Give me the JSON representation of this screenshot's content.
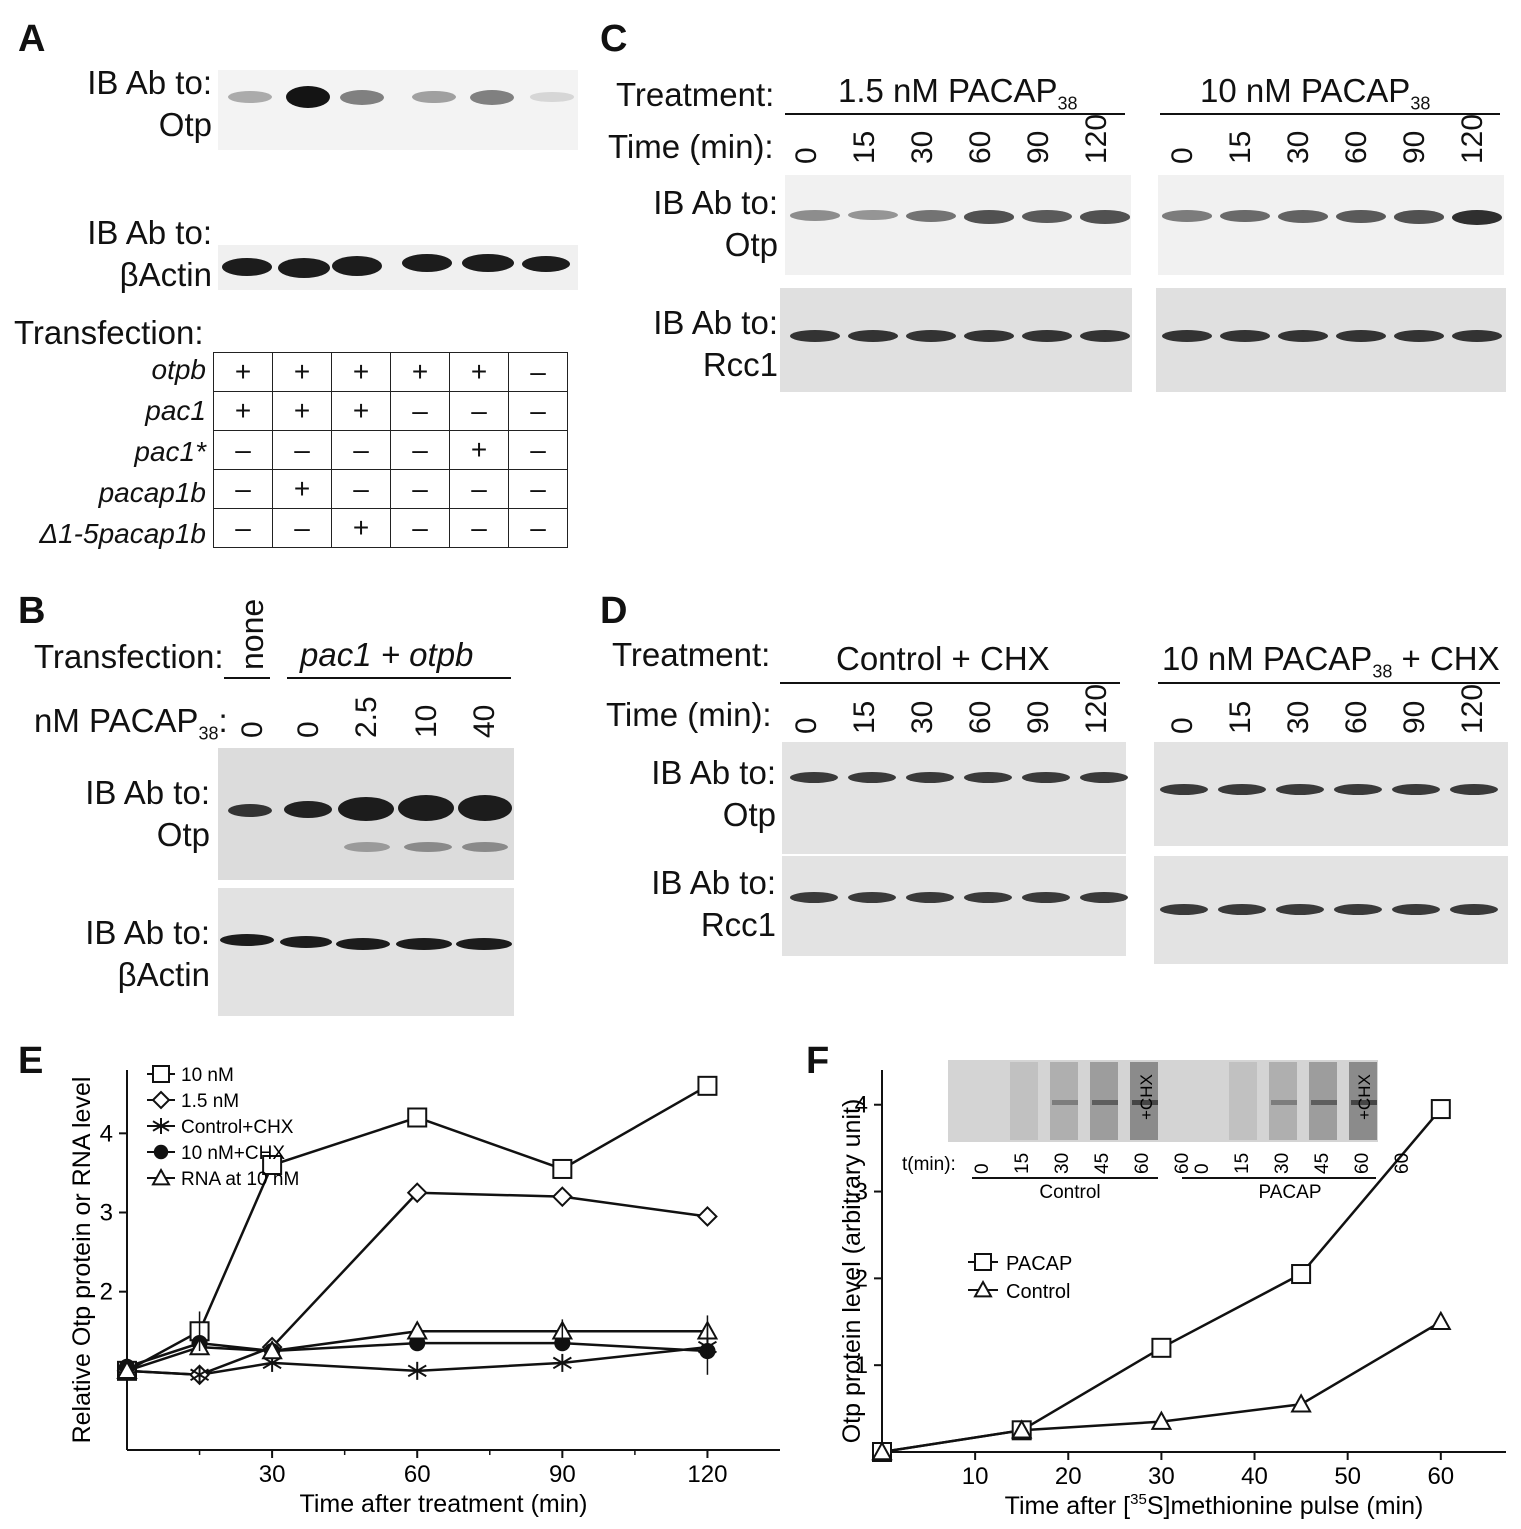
{
  "panels": {
    "A": "A",
    "B": "B",
    "C": "C",
    "D": "D",
    "E": "E",
    "F": "F"
  },
  "panelA": {
    "ib_otp": [
      "IB Ab to:",
      "Otp"
    ],
    "ib_actin": [
      "IB Ab to:",
      "βActin"
    ],
    "transfection_label": "Transfection:",
    "rows": [
      {
        "name": "otpb",
        "cells": [
          "+",
          "+",
          "+",
          "+",
          "+",
          "–"
        ]
      },
      {
        "name": "pac1",
        "cells": [
          "+",
          "+",
          "+",
          "–",
          "–",
          "–"
        ]
      },
      {
        "name": "pac1*",
        "cells": [
          "–",
          "–",
          "–",
          "–",
          "+",
          "–"
        ]
      },
      {
        "name": "pacap1b",
        "cells": [
          "–",
          "+",
          "–",
          "–",
          "–",
          "–"
        ]
      },
      {
        "name": "Δ1-5pacap1b",
        "cells": [
          "–",
          "–",
          "+",
          "–",
          "–",
          "–"
        ]
      }
    ],
    "otp_band_intensity": [
      0.3,
      1.0,
      0.5,
      0.35,
      0.5,
      0.1
    ]
  },
  "panelB": {
    "transfection_label": "Transfection:",
    "none": "none",
    "group": "pac1 + otpb",
    "dose_label": "nM PACAP",
    "dose_sub": "38",
    "doses": [
      "0",
      "0",
      "2.5",
      "10",
      "40"
    ],
    "ib_otp": [
      "IB Ab to:",
      "Otp"
    ],
    "ib_actin": [
      "IB Ab to:",
      "βActin"
    ]
  },
  "panelC": {
    "treatment_label": "Treatment:",
    "time_label": "Time (min):",
    "groups": [
      {
        "label": "1.5 nM PACAP",
        "sub": "38"
      },
      {
        "label": "10 nM PACAP",
        "sub": "38"
      }
    ],
    "times": [
      "0",
      "15",
      "30",
      "60",
      "90",
      "120"
    ],
    "ib_otp": [
      "IB Ab to:",
      "Otp"
    ],
    "ib_rcc1": [
      "IB Ab to:",
      "Rcc1"
    ]
  },
  "panelD": {
    "treatment_label": "Treatment:",
    "time_label": "Time (min):",
    "groups": [
      {
        "label": "Control + CHX",
        "sub": ""
      },
      {
        "label": "10 nM PACAP",
        "sub": "38",
        "suffix": " + CHX"
      }
    ],
    "times": [
      "0",
      "15",
      "30",
      "60",
      "90",
      "120"
    ],
    "ib_otp": [
      "IB Ab to:",
      "Otp"
    ],
    "ib_rcc1": [
      "IB Ab to:",
      "Rcc1"
    ]
  },
  "chart_data": [
    {
      "type": "line",
      "panel": "E",
      "xlabel": "Time after treatment (min)",
      "ylabel": "Relative Otp protein or RNA level",
      "xticks": [
        "30",
        "60",
        "90",
        "120"
      ],
      "yticks": [
        "2",
        "3",
        "4"
      ],
      "xlim": [
        0,
        135
      ],
      "ylim": [
        0,
        4.8
      ],
      "series": [
        {
          "name": "10 nM",
          "marker": "square",
          "x": [
            0,
            15,
            30,
            60,
            90,
            120
          ],
          "y": [
            1.0,
            1.5,
            3.6,
            4.2,
            3.55,
            4.6
          ]
        },
        {
          "name": "1.5 nM",
          "marker": "diamond",
          "x": [
            0,
            15,
            30,
            60,
            90,
            120
          ],
          "y": [
            1.0,
            0.95,
            1.3,
            3.25,
            3.2,
            2.95
          ]
        },
        {
          "name": "Control+CHX",
          "marker": "star",
          "x": [
            0,
            15,
            30,
            60,
            90,
            120
          ],
          "y": [
            1.0,
            0.95,
            1.1,
            1.0,
            1.1,
            1.3
          ]
        },
        {
          "name": "10 nM+CHX",
          "marker": "filled-circle",
          "x": [
            0,
            15,
            30,
            60,
            90,
            120
          ],
          "y": [
            1.05,
            1.35,
            1.25,
            1.35,
            1.35,
            1.25
          ]
        },
        {
          "name": "RNA at 10 nM",
          "marker": "triangle",
          "x": [
            0,
            15,
            30,
            60,
            90,
            120
          ],
          "y": [
            1.0,
            1.3,
            1.25,
            1.5,
            1.5,
            1.5
          ]
        }
      ]
    },
    {
      "type": "line",
      "panel": "F",
      "xlabel_pre": "Time after [",
      "xlabel_sup": "35",
      "xlabel_post": "S]methionine pulse (min)",
      "ylabel": "Otp protein level (arbitrary unit)",
      "xticks": [
        "10",
        "20",
        "30",
        "40",
        "50",
        "60"
      ],
      "yticks": [
        "1",
        "2",
        "3",
        "4"
      ],
      "xlim": [
        0,
        67
      ],
      "ylim": [
        0,
        4.4
      ],
      "series": [
        {
          "name": "PACAP",
          "marker": "square",
          "x": [
            0,
            15,
            30,
            45,
            60
          ],
          "y": [
            0,
            0.25,
            1.2,
            2.05,
            3.95
          ]
        },
        {
          "name": "Control",
          "marker": "triangle",
          "x": [
            0,
            15,
            30,
            45,
            60
          ],
          "y": [
            0,
            0.25,
            0.35,
            0.55,
            1.5
          ]
        }
      ],
      "inset": {
        "time_label": "t(min):",
        "times": [
          "0",
          "15",
          "30",
          "45",
          "60",
          "60"
        ],
        "groups": [
          "Control",
          "PACAP"
        ],
        "chx": "+CHX"
      }
    }
  ]
}
